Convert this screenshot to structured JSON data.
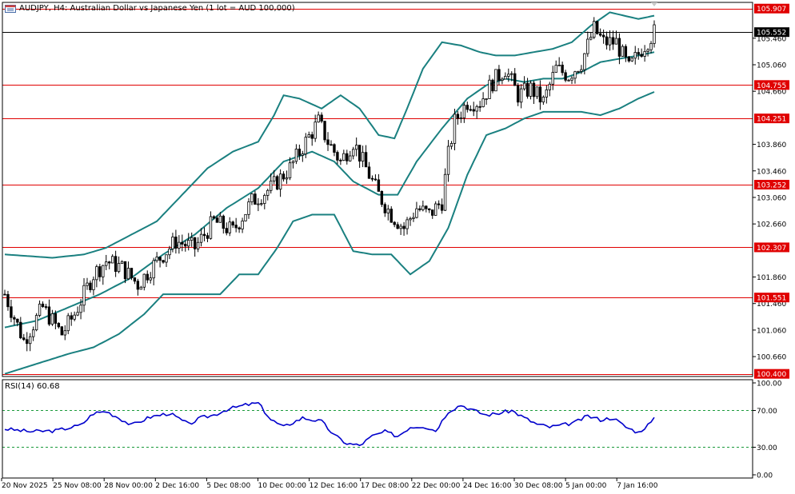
{
  "header": {
    "title": "AUDJPY, H4:  Australian Dollar vs Japanese Yen (1 lot = AUD 100,000)"
  },
  "rsi": {
    "label": "RSI(14) 60.68",
    "ticks": [
      "100.00",
      "70.00",
      "30.00",
      "0.00"
    ]
  },
  "colors": {
    "bollinger": "#1a8080",
    "hline": "#e00000",
    "candle": "#000000",
    "rsi_line": "#0000cc",
    "rsi_level": "#1a9a3a",
    "label_bg": "#e00000",
    "current_bg": "#000000"
  },
  "chart_data": {
    "type": "candlestick",
    "symbol": "AUDJPY",
    "timeframe": "H4",
    "y_range": [
      100.36,
      106.0
    ],
    "y_ticks": [
      "105.460",
      "105.060",
      "104.660",
      "103.860",
      "103.460",
      "103.060",
      "102.660",
      "101.860",
      "101.460",
      "101.060",
      "100.660"
    ],
    "x_ticks": [
      "20 Nov 2025",
      "25 Nov 08:00",
      "28 Nov 00:00",
      "2 Dec 16:00",
      "5 Dec 08:00",
      "10 Dec 00:00",
      "12 Dec 16:00",
      "17 Dec 08:00",
      "22 Dec 00:00",
      "24 Dec 16:00",
      "30 Dec 08:00",
      "5 Jan 00:00",
      "7 Jan 16:00"
    ],
    "horizontal_lines": [
      {
        "value": 105.907,
        "label": "105.907",
        "type": "level"
      },
      {
        "value": 105.552,
        "label": "105.552",
        "type": "current"
      },
      {
        "value": 104.755,
        "label": "104.755",
        "type": "level"
      },
      {
        "value": 104.251,
        "label": "104.251",
        "type": "level"
      },
      {
        "value": 103.252,
        "label": "103.252",
        "type": "level"
      },
      {
        "value": 102.307,
        "label": "102.307",
        "type": "level"
      },
      {
        "value": 101.551,
        "label": "101.551",
        "type": "level"
      },
      {
        "value": 100.4,
        "label": "100.400",
        "type": "level"
      }
    ],
    "price_path": [
      [
        0,
        101.6
      ],
      [
        6,
        100.9
      ],
      [
        12,
        101.4
      ],
      [
        18,
        101.0
      ],
      [
        22,
        101.3
      ],
      [
        28,
        101.9
      ],
      [
        32,
        102.1
      ],
      [
        37,
        102.0
      ],
      [
        42,
        101.75
      ],
      [
        48,
        102.1
      ],
      [
        54,
        102.4
      ],
      [
        60,
        102.3
      ],
      [
        66,
        102.7
      ],
      [
        72,
        102.55
      ],
      [
        78,
        103.0
      ],
      [
        84,
        103.2
      ],
      [
        90,
        103.5
      ],
      [
        95,
        103.9
      ],
      [
        99,
        104.2
      ],
      [
        102,
        103.9
      ],
      [
        106,
        103.6
      ],
      [
        110,
        103.9
      ],
      [
        114,
        103.5
      ],
      [
        118,
        103.1
      ],
      [
        122,
        102.8
      ],
      [
        126,
        102.6
      ],
      [
        130,
        102.9
      ],
      [
        134,
        102.8
      ],
      [
        138,
        103.0
      ],
      [
        140,
        103.7
      ],
      [
        142,
        104.2
      ],
      [
        146,
        104.5
      ],
      [
        150,
        104.5
      ],
      [
        154,
        104.8
      ],
      [
        158,
        105.0
      ],
      [
        162,
        104.6
      ],
      [
        166,
        104.7
      ],
      [
        170,
        104.5
      ],
      [
        174,
        105.0
      ],
      [
        178,
        104.9
      ],
      [
        182,
        105.1
      ],
      [
        186,
        105.6
      ],
      [
        189,
        105.4
      ],
      [
        193,
        105.4
      ],
      [
        197,
        105.0
      ],
      [
        201,
        105.3
      ],
      [
        205,
        105.55
      ]
    ],
    "bollinger": {
      "upper": [
        [
          0,
          102.2
        ],
        [
          15,
          102.15
        ],
        [
          25,
          102.2
        ],
        [
          32,
          102.3
        ],
        [
          40,
          102.5
        ],
        [
          48,
          102.7
        ],
        [
          56,
          103.1
        ],
        [
          64,
          103.5
        ],
        [
          72,
          103.75
        ],
        [
          80,
          103.9
        ],
        [
          85,
          104.3
        ],
        [
          88,
          104.6
        ],
        [
          93,
          104.55
        ],
        [
          100,
          104.4
        ],
        [
          106,
          104.6
        ],
        [
          112,
          104.4
        ],
        [
          118,
          104.0
        ],
        [
          123,
          103.95
        ],
        [
          127,
          104.4
        ],
        [
          132,
          105.0
        ],
        [
          138,
          105.4
        ],
        [
          144,
          105.35
        ],
        [
          150,
          105.25
        ],
        [
          155,
          105.2
        ],
        [
          161,
          105.2
        ],
        [
          167,
          105.25
        ],
        [
          173,
          105.3
        ],
        [
          179,
          105.4
        ],
        [
          185,
          105.65
        ],
        [
          191,
          105.85
        ],
        [
          200,
          105.75
        ],
        [
          205,
          105.8
        ]
      ],
      "middle": [
        [
          0,
          101.1
        ],
        [
          10,
          101.2
        ],
        [
          20,
          101.4
        ],
        [
          30,
          101.6
        ],
        [
          40,
          101.85
        ],
        [
          50,
          102.2
        ],
        [
          60,
          102.5
        ],
        [
          70,
          102.9
        ],
        [
          80,
          103.2
        ],
        [
          88,
          103.6
        ],
        [
          97,
          103.75
        ],
        [
          104,
          103.6
        ],
        [
          110,
          103.3
        ],
        [
          118,
          103.1
        ],
        [
          124,
          103.1
        ],
        [
          130,
          103.6
        ],
        [
          138,
          104.1
        ],
        [
          146,
          104.55
        ],
        [
          152,
          104.75
        ],
        [
          158,
          104.85
        ],
        [
          164,
          104.8
        ],
        [
          170,
          104.85
        ],
        [
          176,
          104.85
        ],
        [
          182,
          104.95
        ],
        [
          188,
          105.1
        ],
        [
          194,
          105.15
        ],
        [
          200,
          105.2
        ],
        [
          205,
          105.25
        ]
      ],
      "lower": [
        [
          0,
          100.4
        ],
        [
          10,
          100.55
        ],
        [
          20,
          100.7
        ],
        [
          28,
          100.8
        ],
        [
          36,
          101.0
        ],
        [
          44,
          101.3
        ],
        [
          50,
          101.6
        ],
        [
          56,
          101.6
        ],
        [
          62,
          101.6
        ],
        [
          68,
          101.6
        ],
        [
          74,
          101.9
        ],
        [
          80,
          101.9
        ],
        [
          86,
          102.3
        ],
        [
          91,
          102.7
        ],
        [
          97,
          102.8
        ],
        [
          104,
          102.8
        ],
        [
          110,
          102.25
        ],
        [
          116,
          102.2
        ],
        [
          122,
          102.2
        ],
        [
          128,
          101.9
        ],
        [
          134,
          102.1
        ],
        [
          140,
          102.6
        ],
        [
          146,
          103.4
        ],
        [
          152,
          104.0
        ],
        [
          158,
          104.1
        ],
        [
          164,
          104.25
        ],
        [
          170,
          104.35
        ],
        [
          176,
          104.35
        ],
        [
          182,
          104.35
        ],
        [
          188,
          104.3
        ],
        [
          194,
          104.4
        ],
        [
          200,
          104.55
        ],
        [
          205,
          104.65
        ]
      ]
    },
    "rsi": {
      "y_range": [
        0,
        100
      ],
      "levels": [
        70,
        30
      ],
      "values": [
        [
          0,
          50
        ],
        [
          8,
          47
        ],
        [
          16,
          48
        ],
        [
          24,
          54
        ],
        [
          28,
          67
        ],
        [
          32,
          69
        ],
        [
          36,
          62
        ],
        [
          40,
          54
        ],
        [
          46,
          63
        ],
        [
          52,
          67
        ],
        [
          58,
          55
        ],
        [
          62,
          62
        ],
        [
          66,
          65
        ],
        [
          70,
          71
        ],
        [
          76,
          76
        ],
        [
          80,
          78
        ],
        [
          84,
          60
        ],
        [
          88,
          52
        ],
        [
          94,
          62
        ],
        [
          100,
          58
        ],
        [
          104,
          43
        ],
        [
          108,
          34
        ],
        [
          112,
          32
        ],
        [
          116,
          42
        ],
        [
          120,
          47
        ],
        [
          124,
          42
        ],
        [
          128,
          52
        ],
        [
          132,
          53
        ],
        [
          136,
          48
        ],
        [
          140,
          69
        ],
        [
          144,
          76
        ],
        [
          148,
          70
        ],
        [
          152,
          65
        ],
        [
          156,
          67
        ],
        [
          160,
          70
        ],
        [
          164,
          62
        ],
        [
          168,
          55
        ],
        [
          172,
          52
        ],
        [
          176,
          54
        ],
        [
          180,
          57
        ],
        [
          184,
          64
        ],
        [
          188,
          60
        ],
        [
          192,
          62
        ],
        [
          196,
          52
        ],
        [
          200,
          46
        ],
        [
          204,
          57
        ],
        [
          205,
          60.68
        ]
      ]
    }
  }
}
